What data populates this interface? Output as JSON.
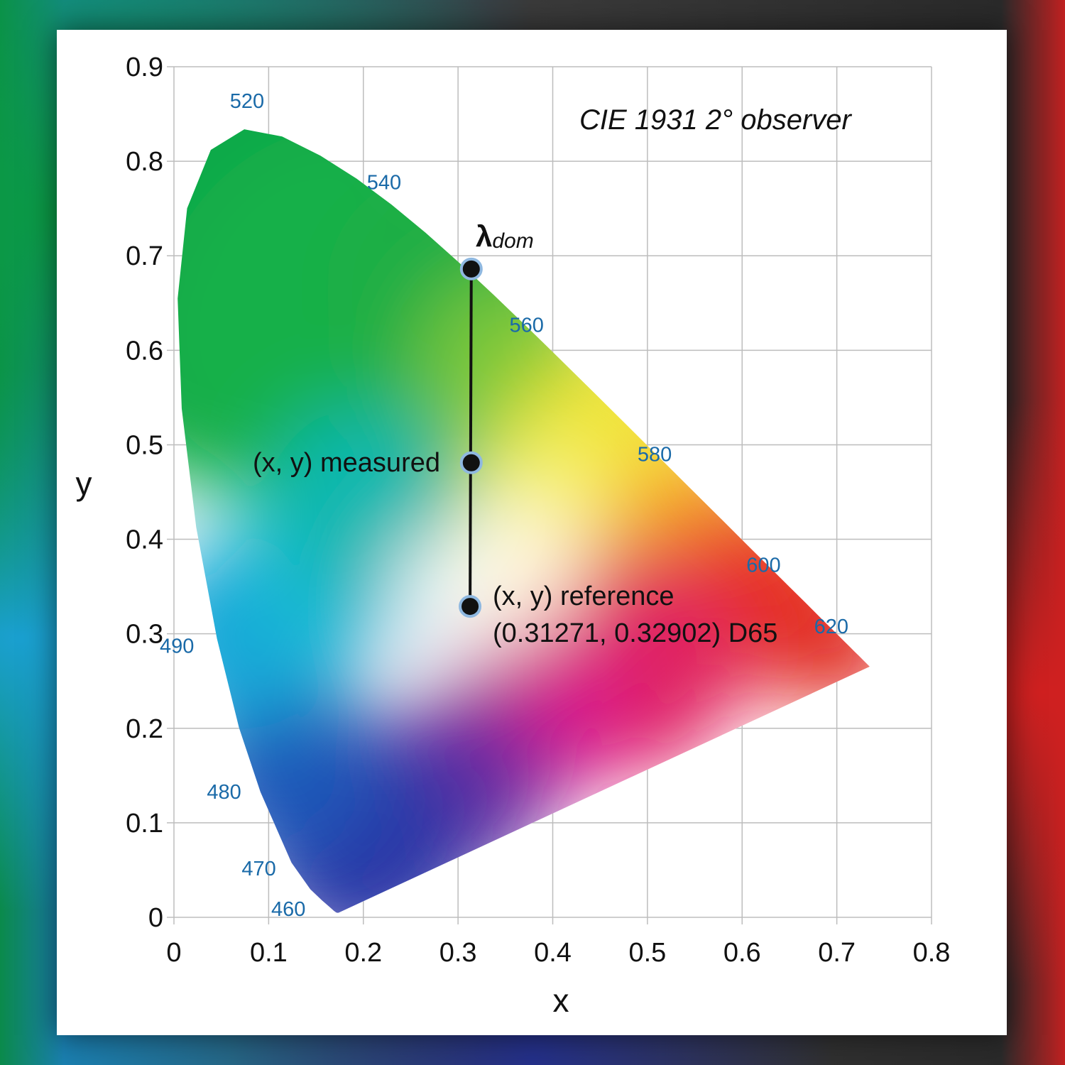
{
  "chart_data": {
    "type": "scatter",
    "title": "CIE 1931 2° observer",
    "xlabel": "x",
    "ylabel": "y",
    "xlim": [
      0,
      0.8
    ],
    "ylim": [
      0,
      0.9
    ],
    "grid": true,
    "x_ticks": [
      "0",
      "0.1",
      "0.2",
      "0.3",
      "0.4",
      "0.5",
      "0.6",
      "0.7",
      "0.8"
    ],
    "y_ticks": [
      "0",
      "0.1",
      "0.2",
      "0.3",
      "0.4",
      "0.5",
      "0.6",
      "0.7",
      "0.8",
      "0.9"
    ],
    "spectral_locus": [
      [
        0.1741,
        0.005
      ],
      [
        0.1738,
        0.0049
      ],
      [
        0.1733,
        0.0048
      ],
      [
        0.1726,
        0.0048
      ],
      [
        0.1714,
        0.0051
      ],
      [
        0.1689,
        0.0069
      ],
      [
        0.1644,
        0.0109
      ],
      [
        0.1566,
        0.0177
      ],
      [
        0.144,
        0.0297
      ],
      [
        0.1241,
        0.0578
      ],
      [
        0.0913,
        0.1327
      ],
      [
        0.0687,
        0.2007
      ],
      [
        0.0454,
        0.295
      ],
      [
        0.0235,
        0.4127
      ],
      [
        0.0082,
        0.5384
      ],
      [
        0.0039,
        0.6548
      ],
      [
        0.0139,
        0.7502
      ],
      [
        0.0389,
        0.812
      ],
      [
        0.0743,
        0.8338
      ],
      [
        0.1142,
        0.8262
      ],
      [
        0.1547,
        0.8059
      ],
      [
        0.1929,
        0.7816
      ],
      [
        0.2296,
        0.7543
      ],
      [
        0.2658,
        0.7243
      ],
      [
        0.3016,
        0.6923
      ],
      [
        0.3373,
        0.6589
      ],
      [
        0.3731,
        0.6245
      ],
      [
        0.4087,
        0.5896
      ],
      [
        0.4441,
        0.5547
      ],
      [
        0.4788,
        0.5202
      ],
      [
        0.5125,
        0.4866
      ],
      [
        0.5448,
        0.4544
      ],
      [
        0.5752,
        0.4242
      ],
      [
        0.6029,
        0.3965
      ],
      [
        0.627,
        0.3725
      ],
      [
        0.6482,
        0.3514
      ],
      [
        0.6658,
        0.334
      ],
      [
        0.6801,
        0.3197
      ],
      [
        0.6915,
        0.3083
      ],
      [
        0.7006,
        0.2993
      ],
      [
        0.7079,
        0.292
      ],
      [
        0.714,
        0.2859
      ],
      [
        0.719,
        0.2809
      ],
      [
        0.723,
        0.277
      ],
      [
        0.726,
        0.274
      ],
      [
        0.7283,
        0.2717
      ],
      [
        0.73,
        0.27
      ],
      [
        0.7347,
        0.2653
      ]
    ],
    "wavelength_labels": [
      {
        "label": "520",
        "x": 0.074,
        "y": 0.834
      },
      {
        "label": "540",
        "x": 0.23,
        "y": 0.754
      },
      {
        "label": "560",
        "x": 0.373,
        "y": 0.624
      },
      {
        "label": "580",
        "x": 0.512,
        "y": 0.487
      },
      {
        "label": "600",
        "x": 0.627,
        "y": 0.373
      },
      {
        "label": "620",
        "x": 0.691,
        "y": 0.308
      },
      {
        "label": "490",
        "x": 0.045,
        "y": 0.295
      },
      {
        "label": "480",
        "x": 0.091,
        "y": 0.133
      },
      {
        "label": "470",
        "x": 0.124,
        "y": 0.058
      },
      {
        "label": "460",
        "x": 0.144,
        "y": 0.03
      }
    ],
    "points": [
      {
        "name": "λdom",
        "x": 0.314,
        "y": 0.686
      },
      {
        "name": "(x, y) measured",
        "x": 0.314,
        "y": 0.481
      },
      {
        "name": "(x, y) reference",
        "x": 0.3127,
        "y": 0.329
      }
    ],
    "annotations": {
      "lambda_main": "λ",
      "lambda_sub": "dom",
      "measured": "(x, y) measured",
      "reference_line1": "(x, y) reference",
      "reference_line2": "(0.31271, 0.32902) D65"
    }
  },
  "colors": {
    "wavelength_label": "#1a6aa8",
    "grid": "#bdbdbd",
    "point": "#111111",
    "point_ring": "#8fb8e0"
  }
}
